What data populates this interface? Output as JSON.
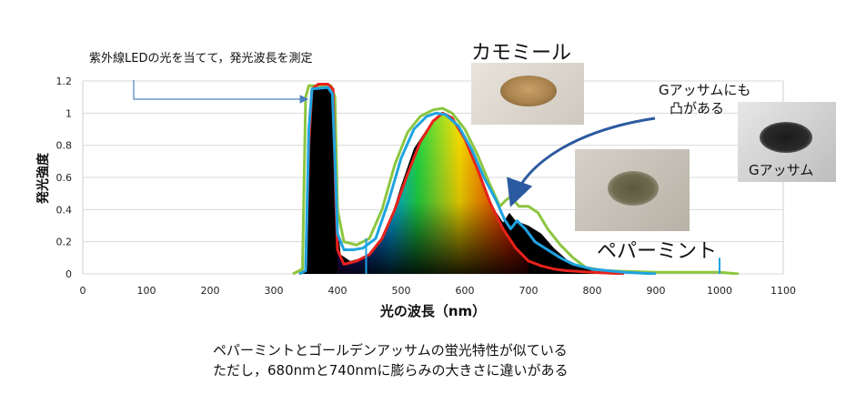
{
  "annotations": {
    "led_note": "紫外線LEDの光を当てて，発光波長を測定",
    "chamomile_label": "カモミール",
    "peppermint_label": "ペパーミント",
    "bump_note_line1": "Gアッサムにも",
    "bump_note_line2": "凸がある",
    "assam_label": "Gアッサム",
    "conclusion_line1": "ペパーミントとゴールデンアッサムの蛍光特性が似ている",
    "conclusion_line2": "ただし，680nmと740nmに膨らみの大きさに違いがある"
  },
  "colors": {
    "chamomile": "#e8221c",
    "peppermint": "#1fa3e0",
    "assam": "#8cc63f",
    "black_fill": "#000000",
    "arrow": "#2c5aa0",
    "led_arrow": "#4a7fc1"
  },
  "icons": {
    "chamomile_photo": "chamomile-tea-pile-on-paper",
    "peppermint_photo": "peppermint-tea-pile-on-paper",
    "assam_photo": "dark-tea-pile-on-paper"
  },
  "chart_data": {
    "type": "line",
    "xlabel": "光の波長（nm）",
    "ylabel": "発光強度",
    "xlim": [
      0,
      1100
    ],
    "ylim": [
      0,
      1.2
    ],
    "xticks": [
      "0",
      "100",
      "200",
      "300",
      "400",
      "500",
      "600",
      "700",
      "800",
      "900",
      "1000",
      "1100"
    ],
    "yticks": [
      "0",
      "0.2",
      "0.4",
      "0.6",
      "0.8",
      "1",
      "1.2"
    ],
    "grid": "horizontal",
    "legend": "none",
    "series": [
      {
        "key": "chamomile",
        "points": [
          [
            340,
            0
          ],
          [
            350,
            0.02
          ],
          [
            355,
            0.8
          ],
          [
            360,
            1.15
          ],
          [
            370,
            1.18
          ],
          [
            385,
            1.18
          ],
          [
            393,
            1.15
          ],
          [
            397,
            0.5
          ],
          [
            400,
            0.15
          ],
          [
            410,
            0.06
          ],
          [
            430,
            0.08
          ],
          [
            450,
            0.12
          ],
          [
            470,
            0.22
          ],
          [
            490,
            0.4
          ],
          [
            510,
            0.62
          ],
          [
            530,
            0.82
          ],
          [
            550,
            0.95
          ],
          [
            565,
            1.0
          ],
          [
            580,
            0.97
          ],
          [
            600,
            0.84
          ],
          [
            620,
            0.65
          ],
          [
            640,
            0.44
          ],
          [
            660,
            0.28
          ],
          [
            680,
            0.16
          ],
          [
            700,
            0.08
          ],
          [
            720,
            0.05
          ],
          [
            740,
            0.03
          ],
          [
            760,
            0.02
          ],
          [
            800,
            0.01
          ],
          [
            850,
            0
          ]
        ]
      },
      {
        "key": "peppermint",
        "points": [
          [
            340,
            0
          ],
          [
            350,
            0.02
          ],
          [
            355,
            0.9
          ],
          [
            360,
            1.15
          ],
          [
            385,
            1.16
          ],
          [
            392,
            1.12
          ],
          [
            397,
            0.6
          ],
          [
            400,
            0.25
          ],
          [
            410,
            0.15
          ],
          [
            425,
            0.15
          ],
          [
            440,
            0.16
          ],
          [
            460,
            0.22
          ],
          [
            480,
            0.45
          ],
          [
            500,
            0.72
          ],
          [
            520,
            0.9
          ],
          [
            540,
            0.98
          ],
          [
            555,
            1.0
          ],
          [
            570,
            0.99
          ],
          [
            590,
            0.92
          ],
          [
            610,
            0.78
          ],
          [
            630,
            0.6
          ],
          [
            650,
            0.45
          ],
          [
            662,
            0.34
          ],
          [
            672,
            0.28
          ],
          [
            682,
            0.33
          ],
          [
            695,
            0.28
          ],
          [
            710,
            0.2
          ],
          [
            730,
            0.15
          ],
          [
            750,
            0.1
          ],
          [
            770,
            0.06
          ],
          [
            800,
            0.03
          ],
          [
            850,
            0.01
          ],
          [
            900,
            0
          ]
        ]
      },
      {
        "key": "assam",
        "points": [
          [
            330,
            0
          ],
          [
            345,
            0.03
          ],
          [
            350,
            1.1
          ],
          [
            355,
            1.17
          ],
          [
            390,
            1.17
          ],
          [
            396,
            1.1
          ],
          [
            400,
            0.4
          ],
          [
            410,
            0.2
          ],
          [
            430,
            0.18
          ],
          [
            450,
            0.22
          ],
          [
            470,
            0.4
          ],
          [
            490,
            0.68
          ],
          [
            510,
            0.88
          ],
          [
            530,
            0.98
          ],
          [
            550,
            1.02
          ],
          [
            565,
            1.03
          ],
          [
            580,
            1.0
          ],
          [
            600,
            0.9
          ],
          [
            620,
            0.74
          ],
          [
            640,
            0.55
          ],
          [
            655,
            0.42
          ],
          [
            665,
            0.46
          ],
          [
            672,
            0.48
          ],
          [
            685,
            0.42
          ],
          [
            700,
            0.42
          ],
          [
            715,
            0.38
          ],
          [
            730,
            0.28
          ],
          [
            750,
            0.18
          ],
          [
            770,
            0.1
          ],
          [
            790,
            0.04
          ],
          [
            820,
            0.02
          ],
          [
            900,
            0.01
          ],
          [
            1000,
            0.01
          ],
          [
            1030,
            0
          ]
        ]
      }
    ],
    "black_fill": [
      [
        340,
        0
      ],
      [
        350,
        0.02
      ],
      [
        355,
        1.0
      ],
      [
        360,
        1.15
      ],
      [
        385,
        1.16
      ],
      [
        392,
        1.12
      ],
      [
        397,
        0.45
      ],
      [
        405,
        0.12
      ],
      [
        420,
        0.08
      ],
      [
        440,
        0.1
      ],
      [
        460,
        0.15
      ],
      [
        480,
        0.3
      ],
      [
        500,
        0.55
      ],
      [
        520,
        0.78
      ],
      [
        540,
        0.9
      ],
      [
        560,
        0.94
      ],
      [
        580,
        0.9
      ],
      [
        600,
        0.78
      ],
      [
        620,
        0.6
      ],
      [
        640,
        0.44
      ],
      [
        660,
        0.32
      ],
      [
        670,
        0.38
      ],
      [
        680,
        0.33
      ],
      [
        700,
        0.3
      ],
      [
        720,
        0.25
      ],
      [
        740,
        0.16
      ],
      [
        760,
        0.09
      ],
      [
        780,
        0.05
      ],
      [
        800,
        0.02
      ],
      [
        830,
        0.01
      ],
      [
        850,
        0
      ]
    ],
    "spectrum_band": [
      400,
      700
    ],
    "spikes": [
      [
        445,
        0.22
      ],
      [
        1000,
        0.1
      ]
    ]
  }
}
